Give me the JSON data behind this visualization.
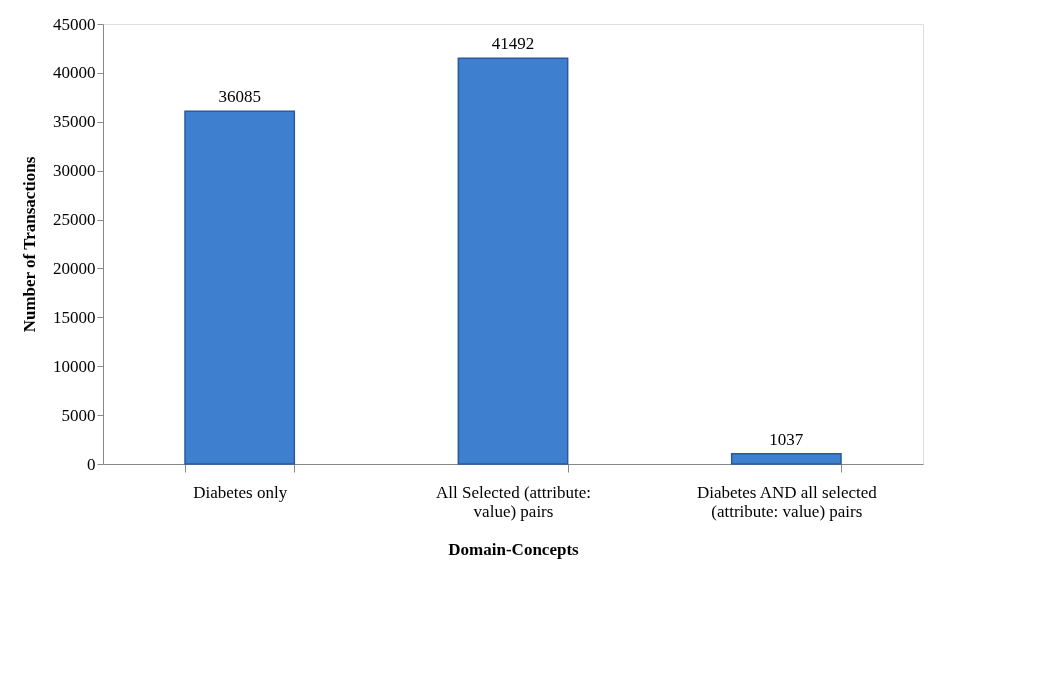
{
  "chart_data": {
    "type": "bar",
    "xlabel": "Domain-Concepts",
    "ylabel": "Number of Transactions",
    "categories": [
      "Diabetes only",
      "All Selected (attribute: value) pairs",
      "Diabetes AND all selected (attribute: value) pairs"
    ],
    "values": [
      36085,
      41492,
      1037
    ],
    "color": "#3f7fcf",
    "ylim": [
      0,
      45000
    ],
    "yticks": [
      0,
      5000,
      10000,
      15000,
      20000,
      25000,
      30000,
      35000,
      40000,
      45000
    ],
    "data_labels": true,
    "grid": false
  }
}
